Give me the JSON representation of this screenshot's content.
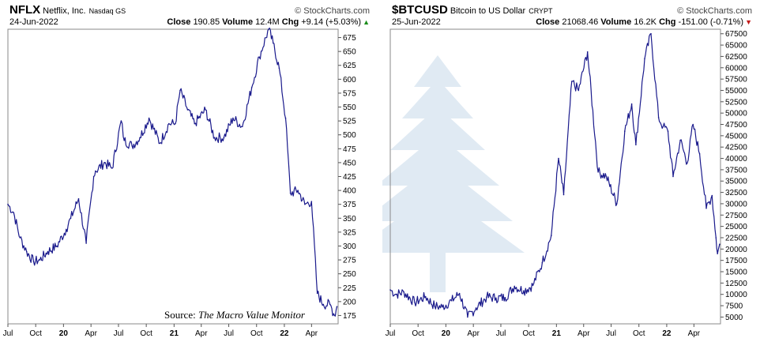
{
  "left": {
    "symbol": "NFLX",
    "name": "Netflix, Inc.",
    "exchange": "Nasdaq GS",
    "brand": "© StockCharts.com",
    "date": "24-Jun-2022",
    "close_label": "Close",
    "close_value": "190.85",
    "volume_label": "Volume",
    "volume_value": "12.4M",
    "chg_label": "Chg",
    "chg_value": "+9.14 (+5.03%)",
    "chg_marker": "▲",
    "source_label": "Source:",
    "source_name": "The Macro Value Monitor"
  },
  "right": {
    "symbol": "$BTCUSD",
    "name": "Bitcoin to US Dollar",
    "exchange": "CRYPT",
    "brand": "© StockCharts.com",
    "date": "25-Jun-2022",
    "close_label": "Close",
    "close_value": "21068.46",
    "volume_label": "Volume",
    "volume_value": "16.2K",
    "chg_label": "Chg",
    "chg_value": "-151.00 (-0.71%)",
    "chg_marker": "▼"
  },
  "colors": {
    "line": "#1a1a8c",
    "up": "#1a8c1a",
    "down": "#c41a1a",
    "watermark": "#dde8f2"
  },
  "chart_data": [
    {
      "type": "line",
      "title": "NFLX Netflix, Inc. Nasdaq GS",
      "xlabel": "",
      "ylabel": "",
      "ylim": [
        160,
        690
      ],
      "x_ticks": [
        "Jul",
        "Oct",
        "20",
        "Apr",
        "Jul",
        "Oct",
        "21",
        "Apr",
        "Jul",
        "Oct",
        "22",
        "Apr"
      ],
      "y_ticks": [
        175,
        200,
        225,
        250,
        275,
        300,
        325,
        350,
        375,
        400,
        425,
        450,
        475,
        500,
        525,
        550,
        575,
        600,
        625,
        650,
        675
      ],
      "x": [
        "2019-07-01",
        "2019-07-20",
        "2019-08-10",
        "2019-09-01",
        "2019-09-24",
        "2019-10-15",
        "2019-11-10",
        "2019-12-10",
        "2020-01-10",
        "2020-01-25",
        "2020-02-20",
        "2020-03-16",
        "2020-04-10",
        "2020-04-16",
        "2020-05-15",
        "2020-06-10",
        "2020-07-10",
        "2020-07-20",
        "2020-08-15",
        "2020-09-10",
        "2020-10-10",
        "2020-11-15",
        "2020-12-15",
        "2021-01-05",
        "2021-01-21",
        "2021-02-15",
        "2021-03-10",
        "2021-04-15",
        "2021-05-15",
        "2021-06-15",
        "2021-07-15",
        "2021-08-15",
        "2021-09-15",
        "2021-10-10",
        "2021-11-10",
        "2021-11-25",
        "2021-12-15",
        "2022-01-05",
        "2022-01-21",
        "2022-02-15",
        "2022-03-10",
        "2022-04-01",
        "2022-04-20",
        "2022-05-10",
        "2022-06-01",
        "2022-06-16",
        "2022-06-24"
      ],
      "values": [
        375,
        360,
        315,
        290,
        272,
        275,
        290,
        300,
        330,
        350,
        385,
        305,
        425,
        435,
        450,
        440,
        525,
        490,
        480,
        495,
        530,
        485,
        520,
        520,
        580,
        545,
        520,
        545,
        495,
        495,
        530,
        515,
        585,
        640,
        690,
        665,
        620,
        530,
        395,
        400,
        375,
        380,
        215,
        195,
        195,
        175,
        191
      ]
    },
    {
      "type": "line",
      "title": "$BTCUSD Bitcoin to US Dollar CRYPT",
      "xlabel": "",
      "ylabel": "",
      "ylim": [
        3500,
        68500
      ],
      "x_ticks": [
        "Jul",
        "Oct",
        "20",
        "Apr",
        "Jul",
        "Oct",
        "21",
        "Apr",
        "Jul",
        "Oct",
        "22",
        "Apr"
      ],
      "y_ticks": [
        5000,
        7500,
        10000,
        12500,
        15000,
        17500,
        20000,
        22500,
        25000,
        27500,
        30000,
        32500,
        35000,
        37500,
        40000,
        42500,
        45000,
        47500,
        50000,
        52500,
        55000,
        57500,
        60000,
        62500,
        65000,
        67500
      ],
      "x": [
        "2019-07-01",
        "2019-07-20",
        "2019-08-15",
        "2019-09-20",
        "2019-10-26",
        "2019-11-25",
        "2019-12-20",
        "2020-01-20",
        "2020-02-15",
        "2020-03-13",
        "2020-04-10",
        "2020-05-15",
        "2020-06-15",
        "2020-07-15",
        "2020-08-15",
        "2020-09-15",
        "2020-10-15",
        "2020-11-15",
        "2020-12-15",
        "2021-01-08",
        "2021-01-25",
        "2021-02-21",
        "2021-03-15",
        "2021-04-14",
        "2021-05-19",
        "2021-06-15",
        "2021-07-20",
        "2021-08-15",
        "2021-09-07",
        "2021-09-21",
        "2021-10-20",
        "2021-11-10",
        "2021-12-05",
        "2021-12-20",
        "2022-01-05",
        "2022-01-22",
        "2022-02-15",
        "2022-03-10",
        "2022-03-29",
        "2022-04-20",
        "2022-05-12",
        "2022-05-31",
        "2022-06-13",
        "2022-06-18",
        "2022-06-25"
      ],
      "values": [
        11000,
        10000,
        10500,
        8200,
        9500,
        7400,
        7200,
        8600,
        10200,
        5000,
        7000,
        9400,
        9200,
        9300,
        11800,
        10800,
        12000,
        17000,
        23000,
        40000,
        32000,
        57000,
        55000,
        63500,
        37000,
        36000,
        30000,
        46000,
        52000,
        43000,
        62000,
        67500,
        49000,
        47000,
        46000,
        36000,
        44000,
        39000,
        47500,
        41000,
        29000,
        31800,
        22500,
        19000,
        21068
      ]
    }
  ]
}
